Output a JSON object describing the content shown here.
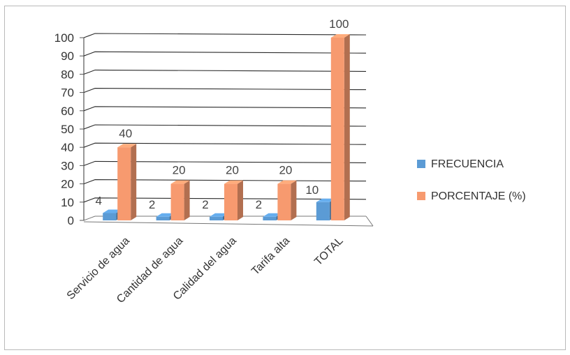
{
  "chart_data": {
    "type": "bar",
    "title": "",
    "xlabel": "",
    "ylabel": "",
    "ylim": [
      0,
      100
    ],
    "yticks": [
      0,
      10,
      20,
      30,
      40,
      50,
      60,
      70,
      80,
      90,
      100
    ],
    "categories": [
      "Servicio de agua",
      "Cantidad de agua",
      "Calidad del agua",
      "Tarifa alta",
      "TOTAL"
    ],
    "series": [
      {
        "name": "FRECUENCIA",
        "values": [
          4,
          2,
          2,
          2,
          10
        ],
        "color": "#5b9bd5"
      },
      {
        "name": "PORCENTAJE (%)",
        "values": [
          40,
          20,
          20,
          20,
          100
        ],
        "color": "#f79a6f"
      }
    ],
    "legend_position": "right",
    "grid": true,
    "style": "3d-clustered-column"
  }
}
